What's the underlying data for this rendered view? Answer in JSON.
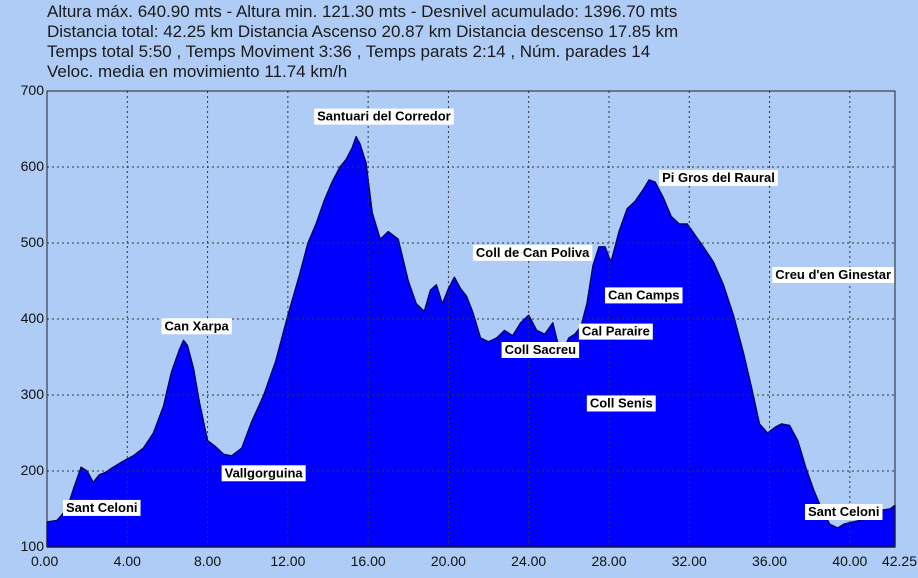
{
  "stats": {
    "lines": [
      "Altura máx. 640.90 mts - Altura min. 121.30 mts - Desnivel acumulado: 1396.70 mts",
      "Distancia total: 42.25 km Distancia Ascenso 20.87 km Distancia descenso 17.85 km",
      "Temps total 5:50 , Temps Moviment 3:36 , Temps parats 2:14 , Núm. parades 14",
      "Veloc. media en movimiento 11.74 km/h"
    ]
  },
  "chart_data": {
    "type": "area",
    "xlim": [
      0,
      42.25
    ],
    "ylim": [
      100,
      700
    ],
    "grid": true,
    "x_ticks": [
      0,
      4,
      8,
      12,
      16,
      20,
      24,
      28,
      32,
      36,
      40,
      42.25
    ],
    "x_tick_labels": [
      "0.00",
      "4.00",
      "8.00",
      "12.00",
      "16.00",
      "20.00",
      "24.00",
      "28.00",
      "32.00",
      "36.00",
      "40.00",
      "42.25"
    ],
    "y_ticks": [
      100,
      200,
      300,
      400,
      500,
      600,
      700
    ],
    "y_tick_labels": [
      "100",
      "200",
      "300",
      "400",
      "500",
      "600",
      "700"
    ],
    "colors": {
      "fill": "#0000ff",
      "stroke": "#00006b",
      "grid": "#333333",
      "plot_bg": "#aeccf5"
    },
    "x": [
      0,
      0.5,
      1.0,
      1.3,
      1.7,
      2.0,
      2.3,
      2.6,
      2.9,
      3.3,
      3.8,
      4.3,
      4.8,
      5.3,
      5.8,
      6.2,
      6.6,
      6.8,
      7.0,
      7.3,
      7.6,
      8.0,
      8.4,
      8.8,
      9.2,
      9.7,
      10.2,
      10.8,
      11.4,
      12.0,
      12.6,
      13.0,
      13.4,
      13.8,
      14.2,
      14.6,
      14.9,
      15.2,
      15.4,
      15.6,
      15.9,
      16.2,
      16.6,
      17.0,
      17.5,
      18.0,
      18.4,
      18.8,
      19.1,
      19.4,
      19.7,
      20.0,
      20.3,
      20.6,
      20.9,
      21.2,
      21.6,
      22.0,
      22.4,
      22.8,
      23.2,
      23.6,
      24.0,
      24.4,
      24.8,
      25.2,
      25.6,
      26.0,
      26.3,
      26.6,
      26.9,
      27.2,
      27.5,
      27.8,
      28.1,
      28.5,
      28.9,
      29.3,
      29.7,
      30.0,
      30.3,
      30.7,
      31.1,
      31.5,
      31.9,
      32.3,
      32.7,
      33.2,
      33.7,
      34.2,
      34.7,
      35.1,
      35.5,
      35.9,
      36.3,
      36.6,
      37.0,
      37.4,
      37.8,
      38.2,
      38.6,
      39.0,
      39.4,
      39.7,
      40.0,
      40.5,
      41.0,
      41.5,
      42.0,
      42.25
    ],
    "y": [
      133,
      135,
      150,
      175,
      205,
      200,
      185,
      195,
      198,
      205,
      213,
      220,
      230,
      250,
      285,
      330,
      360,
      372,
      365,
      335,
      290,
      240,
      232,
      222,
      220,
      230,
      265,
      300,
      345,
      405,
      460,
      500,
      525,
      555,
      580,
      600,
      610,
      625,
      640,
      630,
      605,
      540,
      505,
      515,
      505,
      450,
      420,
      410,
      438,
      445,
      420,
      440,
      455,
      440,
      430,
      410,
      375,
      370,
      375,
      385,
      378,
      395,
      405,
      385,
      380,
      395,
      352,
      375,
      380,
      390,
      420,
      470,
      495,
      495,
      475,
      515,
      545,
      555,
      570,
      583,
      580,
      560,
      535,
      525,
      525,
      510,
      495,
      475,
      445,
      405,
      355,
      310,
      262,
      250,
      258,
      262,
      260,
      240,
      205,
      175,
      150,
      130,
      125,
      130,
      132,
      135,
      140,
      148,
      150,
      155
    ],
    "annotations": [
      {
        "text": "Santuari del Corredor",
        "x": 15.4,
        "y": 640
      },
      {
        "text": "Pi Gros del Raural",
        "x": 29.9,
        "y": 583
      },
      {
        "text": "Coll de Can Poliva",
        "x": 27.0,
        "y": 495
      },
      {
        "text": "Creu d'en Ginestar",
        "x": 31.9,
        "y": 525
      },
      {
        "text": "Can Camps",
        "x": 28.0,
        "y": 460
      },
      {
        "text": "Can Xarpa",
        "x": 6.8,
        "y": 372
      },
      {
        "text": "Cal Paraire",
        "x": 26.6,
        "y": 390
      },
      {
        "text": "Coll Sacreu",
        "x": 22.4,
        "y": 375
      },
      {
        "text": "Coll Senis",
        "x": 26.0,
        "y": 352
      },
      {
        "text": "Vallgorguina",
        "x": 8.8,
        "y": 222
      },
      {
        "text": "Sant Celoni",
        "x": 0.3,
        "y": 133
      },
      {
        "text": "Sant Celoni",
        "x": 42.0,
        "y": 150
      }
    ]
  }
}
